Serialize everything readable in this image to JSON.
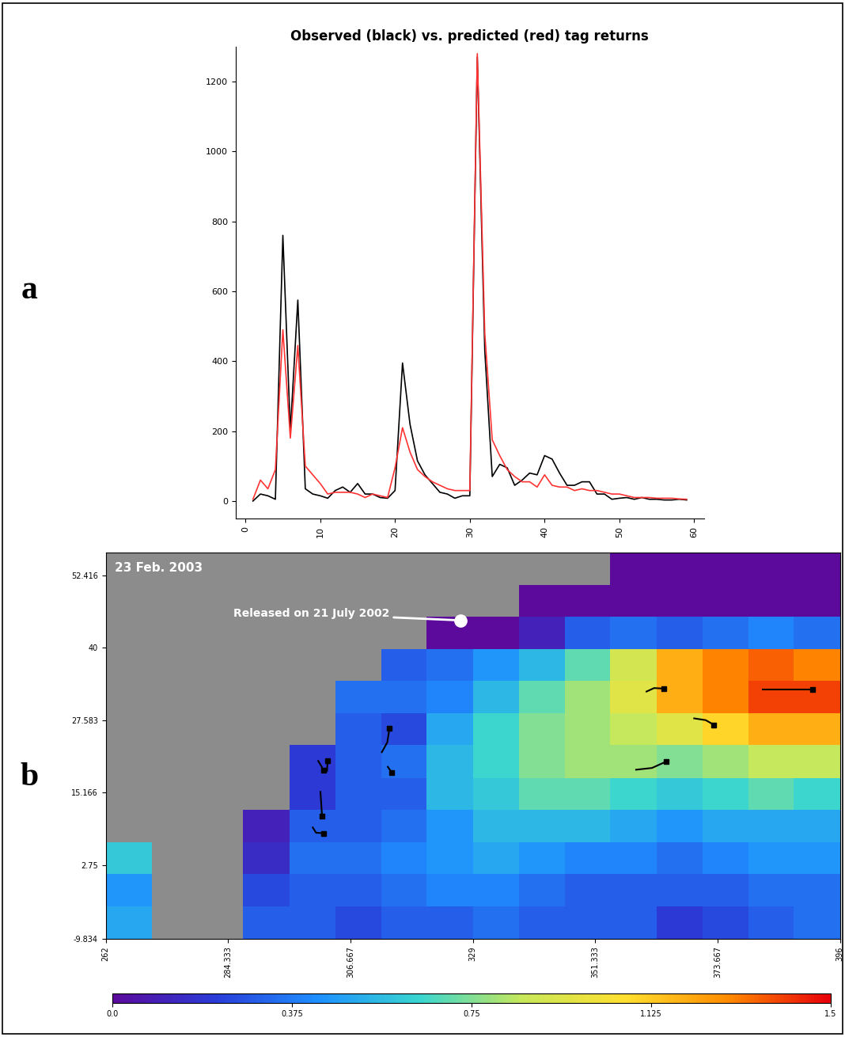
{
  "chart_data": [
    {
      "type": "line",
      "label": "a",
      "title": "Observed (black) vs. predicted (red) tag returns",
      "x": [
        1,
        2,
        3,
        4,
        5,
        6,
        7,
        8,
        9,
        10,
        11,
        12,
        13,
        14,
        15,
        16,
        17,
        18,
        19,
        20,
        21,
        22,
        23,
        24,
        25,
        26,
        27,
        28,
        29,
        30,
        31,
        32,
        33,
        34,
        35,
        36,
        37,
        38,
        39,
        40,
        41,
        42,
        43,
        44,
        45,
        46,
        47,
        48,
        49,
        50,
        51,
        52,
        53,
        54,
        55,
        56,
        57,
        58,
        59
      ],
      "series": [
        {
          "name": "Observed",
          "color": "#000000",
          "values": [
            0,
            20,
            15,
            5,
            760,
            200,
            575,
            35,
            20,
            15,
            8,
            30,
            40,
            25,
            50,
            20,
            20,
            10,
            8,
            30,
            395,
            220,
            115,
            75,
            50,
            25,
            20,
            8,
            15,
            15,
            1270,
            430,
            70,
            105,
            95,
            45,
            60,
            80,
            75,
            130,
            120,
            80,
            45,
            45,
            55,
            55,
            20,
            20,
            5,
            8,
            10,
            5,
            10,
            5,
            5,
            3,
            3,
            5,
            3
          ]
        },
        {
          "name": "Predicted",
          "color": "#ff3333",
          "values": [
            5,
            60,
            35,
            90,
            490,
            180,
            445,
            100,
            75,
            50,
            20,
            25,
            25,
            25,
            20,
            10,
            20,
            15,
            10,
            95,
            210,
            140,
            90,
            70,
            55,
            45,
            35,
            30,
            30,
            30,
            1280,
            480,
            175,
            130,
            90,
            70,
            55,
            55,
            40,
            75,
            45,
            40,
            40,
            30,
            35,
            30,
            30,
            25,
            20,
            20,
            15,
            10,
            10,
            10,
            8,
            8,
            8,
            6,
            5
          ]
        }
      ],
      "xlim": [
        -1.3,
        61.3
      ],
      "ylim": [
        -50,
        1300
      ],
      "xticks": [
        0,
        10,
        20,
        30,
        40,
        50,
        60
      ],
      "yticks": [
        0,
        200,
        400,
        600,
        800,
        1000,
        1200
      ]
    },
    {
      "type": "heatmap",
      "label": "b",
      "title": "23 Feb. 2003",
      "xlim": [
        262,
        396
      ],
      "ylim": [
        -9.834,
        56.3
      ],
      "xticks": [
        262,
        284.333,
        306.667,
        329,
        351.333,
        373.667,
        396
      ],
      "yticks": [
        -9.834,
        2.75,
        15.166,
        27.583,
        40,
        52.416
      ],
      "x_edges": [
        262,
        270.4,
        278.8,
        287.1,
        295.5,
        303.9,
        312.3,
        320.6,
        329,
        337.4,
        345.8,
        354.1,
        362.5,
        370.9,
        379.3,
        387.6,
        396
      ],
      "y_edges": [
        -9.834,
        -4.3,
        1.2,
        6.7,
        12.2,
        17.7,
        23.3,
        28.8,
        34.3,
        39.8,
        45.3,
        50.8,
        56.3
      ],
      "cells": [
        [
          0.5,
          null,
          null,
          0.3,
          0.3,
          0.25,
          0.3,
          0.3,
          0.35,
          0.3,
          0.3,
          0.3,
          0.2,
          0.25,
          0.3,
          0.35
        ],
        [
          0.45,
          null,
          null,
          0.25,
          0.3,
          0.3,
          0.35,
          0.4,
          0.4,
          0.35,
          0.3,
          0.3,
          0.3,
          0.3,
          0.35,
          0.35
        ],
        [
          0.6,
          null,
          null,
          0.15,
          0.35,
          0.35,
          0.4,
          0.45,
          0.5,
          0.45,
          0.4,
          0.4,
          0.35,
          0.4,
          0.45,
          0.45
        ],
        [
          null,
          null,
          null,
          0.1,
          0.3,
          0.3,
          0.35,
          0.45,
          0.55,
          0.55,
          0.55,
          0.5,
          0.45,
          0.5,
          0.5,
          0.5
        ],
        [
          null,
          null,
          null,
          null,
          0.2,
          0.3,
          0.3,
          0.55,
          0.6,
          0.7,
          0.7,
          0.65,
          0.6,
          0.65,
          0.7,
          0.65
        ],
        [
          null,
          null,
          null,
          null,
          0.2,
          0.3,
          0.35,
          0.55,
          0.65,
          0.75,
          0.8,
          0.8,
          0.75,
          0.8,
          0.85,
          0.85
        ],
        [
          null,
          null,
          null,
          null,
          null,
          0.3,
          0.25,
          0.5,
          0.65,
          0.75,
          0.8,
          0.85,
          0.95,
          1.1,
          1.2,
          1.2
        ],
        [
          null,
          null,
          null,
          null,
          null,
          0.35,
          0.35,
          0.4,
          0.55,
          0.7,
          0.8,
          0.95,
          1.2,
          1.3,
          1.4,
          1.4
        ],
        [
          null,
          null,
          null,
          null,
          null,
          null,
          0.3,
          0.35,
          0.45,
          0.55,
          0.7,
          0.9,
          1.2,
          1.3,
          1.35,
          1.3
        ],
        [
          null,
          null,
          null,
          null,
          null,
          null,
          null,
          0.0,
          0.0,
          0.1,
          0.3,
          0.35,
          0.3,
          0.35,
          0.4,
          0.35
        ],
        [
          null,
          null,
          null,
          null,
          null,
          null,
          null,
          null,
          null,
          0.0,
          0.0,
          0.0,
          0.0,
          0.0,
          0.0,
          0.0
        ],
        [
          null,
          null,
          null,
          null,
          null,
          null,
          null,
          null,
          null,
          null,
          null,
          0.0,
          0.0,
          0.0,
          0.0,
          0.0
        ]
      ],
      "colorbar": {
        "range": [
          0.0,
          1.5
        ],
        "ticks": [
          0.0,
          0.375,
          0.75,
          1.125,
          1.5
        ]
      },
      "tracks": {
        "color": "#000000",
        "marker": "square",
        "lines": [
          [
            [
              360.7,
              32.5
            ],
            [
              362.1,
              33.1
            ],
            [
              363.9,
              33.0
            ]
          ],
          [
            [
              381.9,
              32.9
            ],
            [
              391.0,
              32.9
            ]
          ],
          [
            [
              369.4,
              27.9
            ],
            [
              371.5,
              27.6
            ],
            [
              373.0,
              26.8
            ]
          ],
          [
            [
              358.8,
              19.1
            ],
            [
              361.7,
              19.4
            ],
            [
              364.3,
              20.5
            ]
          ],
          [
            [
              312.4,
              22.1
            ],
            [
              313.4,
              23.8
            ],
            [
              313.8,
              26.2
            ]
          ],
          [
            [
              313.5,
              19.6
            ],
            [
              314.2,
              18.6
            ]
          ],
          [
            [
              300.8,
              20.6
            ],
            [
              301.8,
              19.0
            ]
          ],
          [
            [
              302.4,
              18.9
            ],
            [
              302.5,
              20.6
            ]
          ],
          [
            [
              301.2,
              15.3
            ],
            [
              301.5,
              11.1
            ]
          ],
          [
            [
              299.8,
              9.2
            ],
            [
              300.4,
              8.3
            ],
            [
              301.8,
              8.2
            ]
          ]
        ]
      },
      "annotations": [
        {
          "text": "Released on 21 July 2002",
          "x": 326.8,
          "y": 44.7,
          "color": "#ffffff"
        }
      ]
    }
  ]
}
